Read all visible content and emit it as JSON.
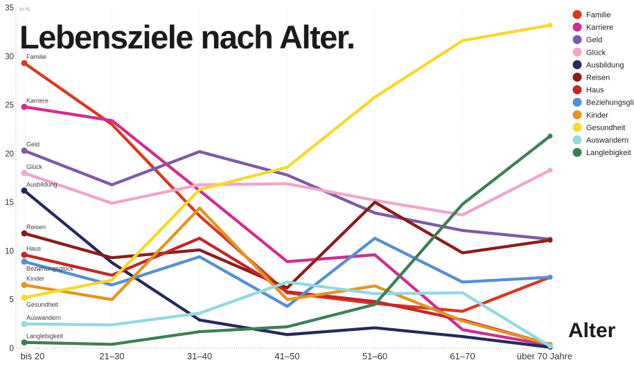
{
  "page": {
    "background": "#ffffff"
  },
  "chart_data": {
    "type": "line",
    "title": "Lebensziele nach Alter.",
    "unit_label": "in %",
    "xlabel": "Alter",
    "ylabel": "",
    "ylim": [
      0,
      35
    ],
    "yticks": [
      0,
      5,
      10,
      15,
      20,
      25,
      30,
      35
    ],
    "grid": "dotted left/bottom axes with faint dotted column gridlines",
    "legend_position": "top-right",
    "categories": [
      "bis 20",
      "21–30",
      "31–40",
      "41–50",
      "51–60",
      "61–70",
      "über 70 Jahre"
    ],
    "series": [
      {
        "name": "Familie",
        "color": "#d8391f",
        "values": [
          29.3,
          23.0,
          13.6,
          5.7,
          4.6,
          3.8,
          7.3
        ]
      },
      {
        "name": "Karriere",
        "color": "#d02d90",
        "values": [
          24.8,
          23.4,
          16.2,
          8.9,
          9.6,
          1.9,
          0.3
        ]
      },
      {
        "name": "Geld",
        "color": "#7d5aa5",
        "values": [
          20.3,
          16.8,
          20.2,
          17.8,
          13.9,
          12.1,
          11.2
        ]
      },
      {
        "name": "Glück",
        "color": "#efa6cb",
        "values": [
          18.0,
          14.9,
          16.8,
          16.9,
          15.2,
          13.7,
          18.3
        ]
      },
      {
        "name": "Ausbildung",
        "color": "#252a5c",
        "values": [
          16.2,
          8.8,
          2.9,
          1.4,
          2.1,
          1.2,
          0.1
        ]
      },
      {
        "name": "Reisen",
        "color": "#8c1b1b",
        "values": [
          11.8,
          9.3,
          10.1,
          6.2,
          15.0,
          9.8,
          11.1
        ]
      },
      {
        "name": "Haus",
        "color": "#c4262a",
        "values": [
          9.6,
          7.5,
          11.3,
          5.8,
          4.8,
          2.9,
          0.4
        ]
      },
      {
        "name": "Beziehungsglück",
        "color": "#5390d4",
        "values": [
          8.9,
          6.5,
          9.4,
          4.3,
          11.3,
          6.8,
          7.3
        ],
        "label_below": true
      },
      {
        "name": "Kinder",
        "color": "#e2951f",
        "values": [
          6.5,
          5.0,
          14.4,
          5.0,
          6.4,
          2.8,
          0.4
        ]
      },
      {
        "name": "Gesundheit",
        "color": "#f8d829",
        "values": [
          5.2,
          7.0,
          16.3,
          18.6,
          25.8,
          31.6,
          33.2
        ],
        "label_below": true
      },
      {
        "name": "Auswandern",
        "color": "#93d9de",
        "values": [
          2.5,
          2.4,
          3.6,
          6.8,
          5.6,
          5.7,
          0.2
        ]
      },
      {
        "name": "Langlebigkeit",
        "color": "#3d7f55",
        "values": [
          0.6,
          0.4,
          1.7,
          2.2,
          4.5,
          14.8,
          21.8
        ]
      }
    ]
  }
}
